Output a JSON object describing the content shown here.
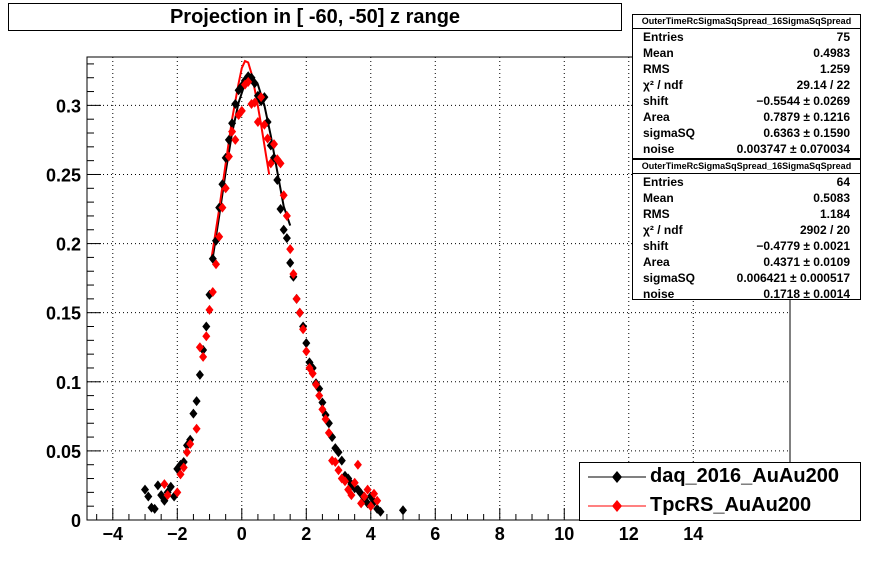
{
  "title": "Projection in [ -60, -50] z range",
  "colors": {
    "daq": "#000000",
    "tpcrs": "#ff0000",
    "grid": "#000000"
  },
  "stats_boxes": [
    {
      "header": "OuterTimeRcSigmaSqSpread_16SigmaSqSpread",
      "rows": [
        {
          "label": "Entries",
          "value": "75"
        },
        {
          "label": "Mean",
          "value": "0.4983"
        },
        {
          "label": "RMS",
          "value": "1.259"
        },
        {
          "label": "χ² / ndf",
          "value": "29.14 / 22"
        },
        {
          "label": "shift",
          "value": "−0.5544 ± 0.0269"
        },
        {
          "label": "Area",
          "value": "0.7879 ± 0.1216"
        },
        {
          "label": "sigmaSQ",
          "value": "0.6363 ± 0.1590"
        },
        {
          "label": "noise",
          "value": "0.003747 ± 0.070034"
        }
      ]
    },
    {
      "header": "OuterTimeRcSigmaSqSpread_16SigmaSqSpread",
      "rows": [
        {
          "label": "Entries",
          "value": "64"
        },
        {
          "label": "Mean",
          "value": "0.5083"
        },
        {
          "label": "RMS",
          "value": "1.184"
        },
        {
          "label": "χ² / ndf",
          "value": "2902 / 20"
        },
        {
          "label": "shift",
          "value": "−0.4779 ± 0.0021"
        },
        {
          "label": "Area",
          "value": "0.4371 ± 0.0109"
        },
        {
          "label": "sigmaSQ",
          "value": "0.006421 ± 0.000517"
        },
        {
          "label": "noise",
          "value": "0.1718 ± 0.0014"
        }
      ]
    }
  ],
  "legend": [
    {
      "label": "daq_2016_AuAu200",
      "color": "#000000"
    },
    {
      "label": "TpcRS_AuAu200",
      "color": "#ff0000"
    }
  ],
  "chart_data": {
    "type": "scatter",
    "title": "Projection in [ -60, -50] z range",
    "xlim": [
      -4.8,
      17
    ],
    "ylim": [
      0,
      0.335
    ],
    "xticks": [
      -4,
      -2,
      0,
      2,
      4,
      6,
      8,
      10,
      12,
      14
    ],
    "xtick_labels": [
      "−4",
      "−2",
      "0",
      "2",
      "4",
      "6",
      "8",
      "10",
      "12",
      "14"
    ],
    "yticks": [
      0,
      0.05,
      0.1,
      0.15,
      0.2,
      0.25,
      0.3
    ],
    "ytick_labels": [
      "0",
      "0.05",
      "0.1",
      "0.15",
      "0.2",
      "0.25",
      "0.3"
    ],
    "grid": true,
    "legend_position": "bottom-right",
    "series": [
      {
        "name": "daq_2016_AuAu200",
        "color": "#000000",
        "marker": "diamond",
        "points": [
          [
            -3.0,
            0.022
          ],
          [
            -2.9,
            0.017
          ],
          [
            -2.8,
            0.009
          ],
          [
            -2.7,
            0.008
          ],
          [
            -2.6,
            0.025
          ],
          [
            -2.5,
            0.018
          ],
          [
            -2.4,
            0.014
          ],
          [
            -2.3,
            0.02
          ],
          [
            -2.2,
            0.024
          ],
          [
            -2.1,
            0.017
          ],
          [
            -2.0,
            0.037
          ],
          [
            -1.9,
            0.04
          ],
          [
            -1.8,
            0.042
          ],
          [
            -1.7,
            0.054
          ],
          [
            -1.6,
            0.058
          ],
          [
            -1.5,
            0.077
          ],
          [
            -1.4,
            0.086
          ],
          [
            -1.3,
            0.105
          ],
          [
            -1.2,
            0.123
          ],
          [
            -1.1,
            0.14
          ],
          [
            -1.0,
            0.163
          ],
          [
            -0.9,
            0.189
          ],
          [
            -0.8,
            0.202
          ],
          [
            -0.7,
            0.226
          ],
          [
            -0.6,
            0.243
          ],
          [
            -0.5,
            0.262
          ],
          [
            -0.4,
            0.275
          ],
          [
            -0.3,
            0.287
          ],
          [
            -0.2,
            0.301
          ],
          [
            -0.1,
            0.311
          ],
          [
            0.0,
            0.314
          ],
          [
            0.1,
            0.318
          ],
          [
            0.2,
            0.321
          ],
          [
            0.3,
            0.32
          ],
          [
            0.4,
            0.316
          ],
          [
            0.5,
            0.307
          ],
          [
            0.6,
            0.303
          ],
          [
            0.7,
            0.306
          ],
          [
            0.8,
            0.288
          ],
          [
            0.9,
            0.271
          ],
          [
            1.0,
            0.262
          ],
          [
            1.1,
            0.246
          ],
          [
            1.2,
            0.225
          ],
          [
            1.3,
            0.21
          ],
          [
            1.4,
            0.204
          ],
          [
            1.5,
            0.186
          ],
          [
            1.6,
            0.176
          ],
          [
            1.7,
            0.16
          ],
          [
            1.8,
            0.15
          ],
          [
            1.9,
            0.14
          ],
          [
            2.0,
            0.128
          ],
          [
            2.1,
            0.114
          ],
          [
            2.2,
            0.11
          ],
          [
            2.3,
            0.099
          ],
          [
            2.4,
            0.095
          ],
          [
            2.5,
            0.085
          ],
          [
            2.6,
            0.076
          ],
          [
            2.7,
            0.07
          ],
          [
            2.8,
            0.06
          ],
          [
            2.9,
            0.052
          ],
          [
            3.0,
            0.049
          ],
          [
            3.1,
            0.043
          ],
          [
            3.2,
            0.032
          ],
          [
            3.3,
            0.03
          ],
          [
            3.4,
            0.026
          ],
          [
            3.5,
            0.023
          ],
          [
            3.6,
            0.022
          ],
          [
            3.7,
            0.019
          ],
          [
            3.8,
            0.016
          ],
          [
            3.9,
            0.012
          ],
          [
            4.0,
            0.017
          ],
          [
            4.1,
            0.013
          ],
          [
            4.2,
            0.008
          ],
          [
            4.3,
            0.006
          ],
          [
            5.0,
            0.007
          ]
        ]
      },
      {
        "name": "TpcRS_AuAu200",
        "color": "#ff0000",
        "marker": "diamond",
        "points": [
          [
            -2.4,
            0.026
          ],
          [
            -2.3,
            0.018
          ],
          [
            -2.0,
            0.02
          ],
          [
            -1.9,
            0.033
          ],
          [
            -1.8,
            0.038
          ],
          [
            -1.7,
            0.049
          ],
          [
            -1.6,
            0.055
          ],
          [
            -1.4,
            0.066
          ],
          [
            -1.3,
            0.125
          ],
          [
            -1.2,
            0.118
          ],
          [
            -1.1,
            0.133
          ],
          [
            -1.0,
            0.152
          ],
          [
            -0.9,
            0.165
          ],
          [
            -0.8,
            0.185
          ],
          [
            -0.7,
            0.205
          ],
          [
            -0.6,
            0.226
          ],
          [
            -0.5,
            0.24
          ],
          [
            -0.4,
            0.263
          ],
          [
            -0.3,
            0.281
          ],
          [
            -0.2,
            0.275
          ],
          [
            -0.1,
            0.293
          ],
          [
            0.0,
            0.296
          ],
          [
            0.1,
            0.315
          ],
          [
            0.2,
            0.317
          ],
          [
            0.3,
            0.301
          ],
          [
            0.4,
            0.302
          ],
          [
            0.5,
            0.288
          ],
          [
            0.6,
            0.306
          ],
          [
            0.7,
            0.286
          ],
          [
            0.8,
            0.276
          ],
          [
            0.9,
            0.258
          ],
          [
            1.0,
            0.272
          ],
          [
            1.1,
            0.261
          ],
          [
            1.2,
            0.258
          ],
          [
            1.3,
            0.235
          ],
          [
            1.4,
            0.22
          ],
          [
            1.5,
            0.196
          ],
          [
            1.6,
            0.178
          ],
          [
            1.7,
            0.16
          ],
          [
            1.8,
            0.15
          ],
          [
            1.9,
            0.138
          ],
          [
            2.0,
            0.122
          ],
          [
            2.1,
            0.11
          ],
          [
            2.2,
            0.106
          ],
          [
            2.3,
            0.098
          ],
          [
            2.4,
            0.09
          ],
          [
            2.5,
            0.08
          ],
          [
            2.6,
            0.073
          ],
          [
            2.7,
            0.063
          ],
          [
            2.8,
            0.043
          ],
          [
            2.9,
            0.042
          ],
          [
            3.0,
            0.036
          ],
          [
            3.1,
            0.03
          ],
          [
            3.2,
            0.028
          ],
          [
            3.3,
            0.022
          ],
          [
            3.5,
            0.027
          ],
          [
            3.6,
            0.04
          ],
          [
            3.8,
            0.017
          ],
          [
            3.9,
            0.022
          ],
          [
            4.1,
            0.019
          ],
          [
            3.4,
            0.018
          ],
          [
            3.7,
            0.012
          ],
          [
            4.0,
            0.01
          ],
          [
            4.2,
            0.014
          ]
        ]
      }
    ],
    "fit_curves": [
      {
        "color": "#000000",
        "points": [
          [
            -0.9,
            0.19
          ],
          [
            -0.7,
            0.22
          ],
          [
            -0.5,
            0.252
          ],
          [
            -0.3,
            0.28
          ],
          [
            -0.1,
            0.302
          ],
          [
            0.1,
            0.316
          ],
          [
            0.3,
            0.321
          ],
          [
            0.5,
            0.315
          ],
          [
            0.7,
            0.3
          ],
          [
            0.9,
            0.278
          ],
          [
            1.1,
            0.252
          ],
          [
            1.3,
            0.227
          ],
          [
            1.5,
            0.213
          ]
        ]
      },
      {
        "color": "#ff0000",
        "points": [
          [
            -0.95,
            0.188
          ],
          [
            -0.7,
            0.225
          ],
          [
            -0.5,
            0.258
          ],
          [
            -0.3,
            0.29
          ],
          [
            -0.1,
            0.316
          ],
          [
            0.0,
            0.327
          ],
          [
            0.1,
            0.332
          ],
          [
            0.2,
            0.331
          ],
          [
            0.3,
            0.323
          ],
          [
            0.45,
            0.306
          ],
          [
            0.6,
            0.286
          ],
          [
            0.75,
            0.264
          ],
          [
            0.85,
            0.25
          ]
        ]
      }
    ]
  }
}
